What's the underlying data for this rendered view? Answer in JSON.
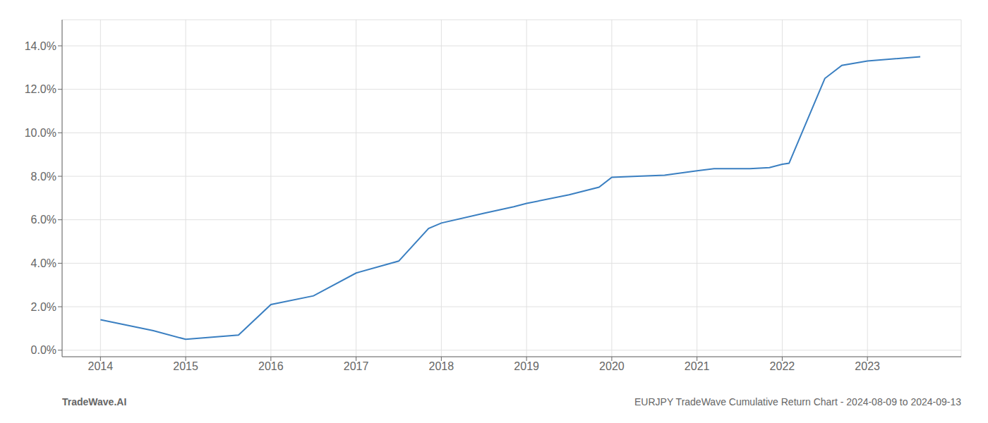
{
  "chart_data": {
    "type": "line",
    "x": [
      2014.0,
      2014.62,
      2015.0,
      2015.62,
      2016.0,
      2016.5,
      2017.0,
      2017.5,
      2017.85,
      2018.0,
      2018.5,
      2018.85,
      2019.0,
      2019.5,
      2019.85,
      2020.0,
      2020.3,
      2020.62,
      2021.0,
      2021.2,
      2021.62,
      2021.85,
      2022.0,
      2022.08,
      2022.5,
      2022.7,
      2023.0,
      2023.62
    ],
    "series": [
      {
        "color": "#3a7fc1",
        "values": [
          1.4,
          0.9,
          0.5,
          0.7,
          2.1,
          2.5,
          3.55,
          4.1,
          5.6,
          5.85,
          6.3,
          6.6,
          6.75,
          7.15,
          7.5,
          7.95,
          8.0,
          8.05,
          8.25,
          8.35,
          8.35,
          8.4,
          8.55,
          8.6,
          12.5,
          13.1,
          13.3,
          13.5
        ]
      }
    ],
    "xlim": [
      2013.55,
      2024.1
    ],
    "ylim": [
      -0.3,
      15.2
    ],
    "xticks": [
      2014,
      2015,
      2016,
      2017,
      2018,
      2019,
      2020,
      2021,
      2022,
      2023
    ],
    "yticks": [
      {
        "value": 0,
        "label": "0.0%"
      },
      {
        "value": 2,
        "label": "2.0%"
      },
      {
        "value": 4,
        "label": "4.0%"
      },
      {
        "value": 6,
        "label": "6.0%"
      },
      {
        "value": 8,
        "label": "8.0%"
      },
      {
        "value": 10,
        "label": "10.0%"
      },
      {
        "value": 12,
        "label": "12.0%"
      },
      {
        "value": 14,
        "label": "14.0%"
      }
    ],
    "grid": true,
    "annotations": [
      "TradeWave.AI",
      "EURJPY TradeWave Cumulative Return Chart - 2024-08-09 to 2024-09-13"
    ]
  }
}
